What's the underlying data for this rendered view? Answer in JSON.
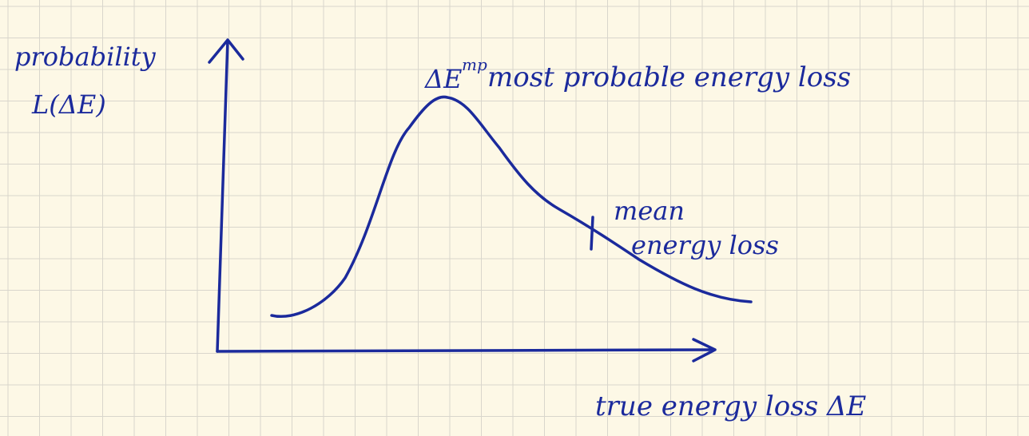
{
  "y_label": {
    "line1": "probability",
    "line2": "L(ΔE)"
  },
  "peak_label": {
    "symbol": "ΔE",
    "superscript": "mp",
    "text": "most probable energy loss"
  },
  "mean_label": {
    "line1": "mean",
    "line2": "energy loss"
  },
  "x_label": "true energy loss ΔE"
}
